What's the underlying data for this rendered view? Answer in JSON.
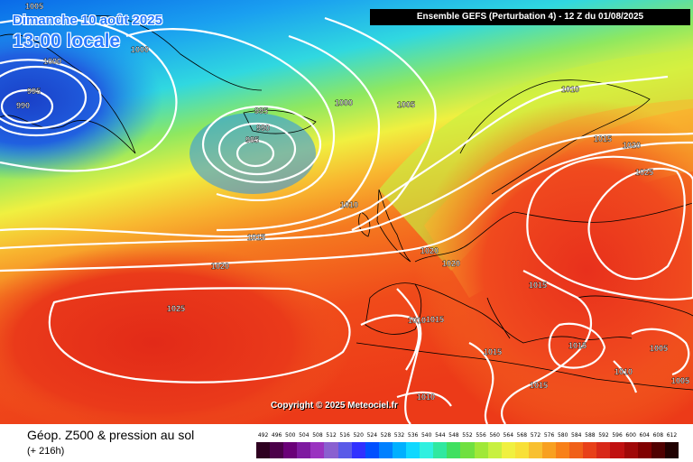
{
  "title": {
    "date": "Dimanche 10 août 2025",
    "time": "13:00 locale"
  },
  "run_info": "Ensemble GEFS  (Perturbation 4)  -  12 Z du 01/08/2025",
  "copyright": "Copyright © 2025 Meteociel.fr",
  "footer": {
    "product": "Géop. Z500 & pression au sol",
    "range": "(+ 216h)"
  },
  "colors": {
    "cold": "#1a3cc8",
    "mid": "#f5f044",
    "warm": "#e8321e",
    "isobar": "#ffffff",
    "coastline": "#000000"
  },
  "color_scale": {
    "values": [
      "492",
      "496",
      "500",
      "504",
      "508",
      "512",
      "516",
      "520",
      "524",
      "528",
      "532",
      "536",
      "540",
      "544",
      "548",
      "552",
      "556",
      "560",
      "564",
      "568",
      "572",
      "576",
      "580",
      "584",
      "588",
      "592",
      "596",
      "600",
      "604",
      "608",
      "612"
    ],
    "colors": [
      "#2e0020",
      "#4b0049",
      "#6a0078",
      "#7e1aa0",
      "#9a33c0",
      "#8a60d0",
      "#5a5ae8",
      "#3030ff",
      "#0050ff",
      "#0080ff",
      "#00b0ff",
      "#10d8ff",
      "#30f0e0",
      "#30e8a0",
      "#40e060",
      "#70e040",
      "#a0e838",
      "#c8f040",
      "#f0f040",
      "#f8e038",
      "#f8c030",
      "#f8a020",
      "#f88018",
      "#f06018",
      "#e84018",
      "#d82818",
      "#c01010",
      "#a00808",
      "#800000",
      "#500000",
      "#200000"
    ]
  },
  "isobars": [
    {
      "text": "1005",
      "id": "iso-1005-nw"
    },
    {
      "text": "1000",
      "id": "iso-1000-greenland"
    },
    {
      "text": "995",
      "id": "iso-995-greenland"
    },
    {
      "text": "990",
      "id": "iso-990-greenland"
    },
    {
      "text": "1000",
      "id": "iso-1000-north"
    },
    {
      "text": "995",
      "id": "iso-995-iceland"
    },
    {
      "text": "990",
      "id": "iso-990-iceland"
    },
    {
      "text": "985",
      "id": "iso-985-iceland"
    },
    {
      "text": "1000",
      "id": "iso-1000-norwegian-sea"
    },
    {
      "text": "1005",
      "id": "iso-1005-norwegian-sea"
    },
    {
      "text": "1010",
      "id": "iso-1010-scandinavia"
    },
    {
      "text": "1015",
      "id": "iso-1015-finland"
    },
    {
      "text": "1020",
      "id": "iso-1020-russia"
    },
    {
      "text": "1025",
      "id": "iso-1025-russia"
    },
    {
      "text": "1010",
      "id": "iso-1010-uk"
    },
    {
      "text": "1015",
      "id": "iso-1015-atlantic"
    },
    {
      "text": "1020",
      "id": "iso-1020-atlantic"
    },
    {
      "text": "1020",
      "id": "iso-1020-biscay"
    },
    {
      "text": "1020",
      "id": "iso-1020-france"
    },
    {
      "text": "1025",
      "id": "iso-1025-azores"
    },
    {
      "text": "1015",
      "id": "iso-1015-balkans"
    },
    {
      "text": "1010",
      "id": "iso-1010-iberia"
    },
    {
      "text": "1015",
      "id": "iso-1015-iberia"
    },
    {
      "text": "1015",
      "id": "iso-1015-mediterranean"
    },
    {
      "text": "1015",
      "id": "iso-1015-aegean"
    },
    {
      "text": "1005",
      "id": "iso-1005-turkey"
    },
    {
      "text": "1010",
      "id": "iso-1010-cyprus"
    },
    {
      "text": "1015",
      "id": "iso-1015-libya"
    },
    {
      "text": "1005",
      "id": "iso-1005-east"
    },
    {
      "text": "1010",
      "id": "iso-1010-sahara"
    }
  ]
}
